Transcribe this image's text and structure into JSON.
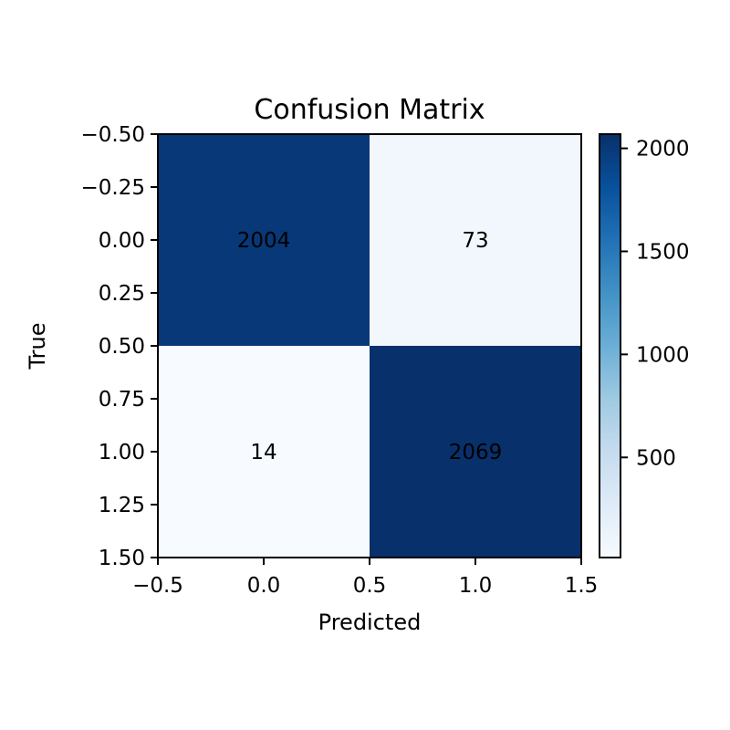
{
  "chart_data": {
    "type": "heatmap",
    "title": "Confusion Matrix",
    "xlabel": "Predicted",
    "ylabel": "True",
    "matrix": [
      [
        2004,
        73
      ],
      [
        14,
        2069
      ]
    ],
    "x_ticks": [
      -0.5,
      0.0,
      0.5,
      1.0,
      1.5
    ],
    "x_tick_labels": [
      "−0.5",
      "0.0",
      "0.5",
      "1.0",
      "1.5"
    ],
    "y_ticks": [
      -0.5,
      -0.25,
      0.0,
      0.25,
      0.5,
      0.75,
      1.0,
      1.25,
      1.5
    ],
    "y_tick_labels": [
      "−0.50",
      "−0.25",
      "0.00",
      "0.25",
      "0.50",
      "0.75",
      "1.00",
      "1.25",
      "1.50"
    ],
    "xlim": [
      -0.5,
      1.5
    ],
    "ylim": [
      -0.5,
      1.5
    ],
    "colormap": "Blues",
    "colorbar": {
      "range": [
        14,
        2069
      ],
      "ticks": [
        500,
        1000,
        1500,
        2000
      ],
      "tick_labels": [
        "500",
        "1000",
        "1500",
        "2000"
      ]
    }
  }
}
